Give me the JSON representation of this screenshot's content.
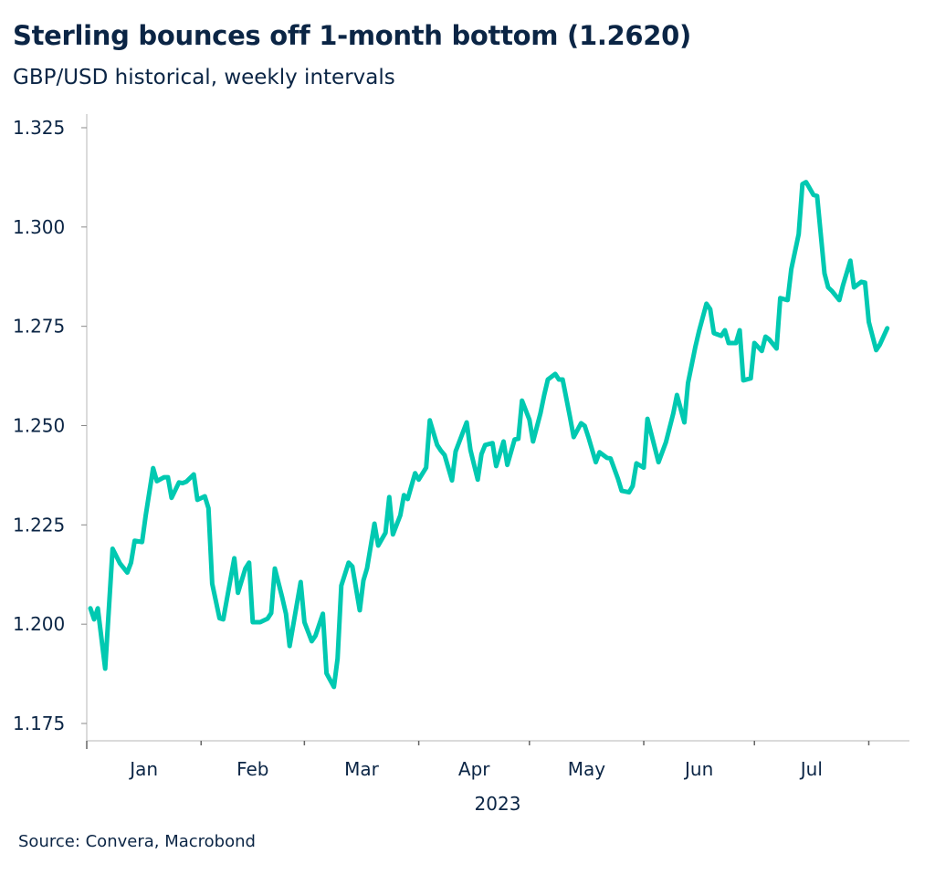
{
  "chart_data": {
    "type": "line",
    "title": "Sterling bounces off 1-month bottom (1.2620)",
    "subtitle": "GBP/USD historical, weekly intervals",
    "source": "Source: Convera, Macrobond",
    "xlabel": "2023",
    "ylabel": "",
    "ylim": [
      1.175,
      1.325
    ],
    "yticks": [
      "1.175",
      "1.200",
      "1.225",
      "1.250",
      "1.275",
      "1.300",
      "1.325"
    ],
    "xticks": [
      "Jan",
      "Feb",
      "Mar",
      "Apr",
      "May",
      "Jun",
      "Jul"
    ],
    "grid": false,
    "line_color": "#00c9b1",
    "series": [
      {
        "x": [
          "2023-01-02",
          "2023-01-03",
          "2023-01-04",
          "2023-01-06",
          "2023-01-08",
          "2023-01-10",
          "2023-01-12",
          "2023-01-13",
          "2023-01-14",
          "2023-01-16",
          "2023-01-17",
          "2023-01-19",
          "2023-01-20",
          "2023-01-22",
          "2023-01-23",
          "2023-01-24",
          "2023-01-26",
          "2023-01-27",
          "2023-01-28",
          "2023-01-30",
          "2023-01-31",
          "2023-02-02",
          "2023-02-03",
          "2023-02-04",
          "2023-02-06",
          "2023-02-07",
          "2023-02-08",
          "2023-02-10",
          "2023-02-11",
          "2023-02-13",
          "2023-02-14",
          "2023-02-15",
          "2023-02-17",
          "2023-02-19",
          "2023-02-20",
          "2023-02-21",
          "2023-02-23",
          "2023-02-24",
          "2023-02-25",
          "2023-02-28",
          "2023-03-01",
          "2023-03-03",
          "2023-03-04",
          "2023-03-06",
          "2023-03-07",
          "2023-03-09",
          "2023-03-10",
          "2023-03-11",
          "2023-03-13",
          "2023-03-14",
          "2023-03-16",
          "2023-03-17",
          "2023-03-18",
          "2023-03-20",
          "2023-03-21",
          "2023-03-23",
          "2023-03-24",
          "2023-03-25",
          "2023-03-27",
          "2023-03-28",
          "2023-03-29",
          "2023-03-31",
          "2023-04-01",
          "2023-04-03",
          "2023-04-04",
          "2023-04-06",
          "2023-04-07",
          "2023-04-08",
          "2023-04-10",
          "2023-04-11",
          "2023-04-14",
          "2023-04-15",
          "2023-04-17",
          "2023-04-18",
          "2023-04-19",
          "2023-04-21",
          "2023-04-22",
          "2023-04-24",
          "2023-04-25",
          "2023-04-27",
          "2023-04-28",
          "2023-04-29",
          "2023-05-01",
          "2023-05-02",
          "2023-05-04",
          "2023-05-05",
          "2023-05-06",
          "2023-05-08",
          "2023-05-09",
          "2023-05-10",
          "2023-05-12",
          "2023-05-13",
          "2023-05-15",
          "2023-05-16",
          "2023-05-17",
          "2023-05-19",
          "2023-05-20",
          "2023-05-22",
          "2023-05-23",
          "2023-05-25",
          "2023-05-26",
          "2023-05-28",
          "2023-05-29",
          "2023-05-30",
          "2023-06-01",
          "2023-06-02",
          "2023-06-03",
          "2023-06-05",
          "2023-06-07",
          "2023-06-09",
          "2023-06-10",
          "2023-06-12",
          "2023-06-13",
          "2023-06-15",
          "2023-06-16",
          "2023-06-18",
          "2023-06-19",
          "2023-06-20",
          "2023-06-22",
          "2023-06-23",
          "2023-06-24",
          "2023-06-26",
          "2023-06-27",
          "2023-06-28",
          "2023-06-30",
          "2023-07-01",
          "2023-07-03",
          "2023-07-04",
          "2023-07-05",
          "2023-07-07",
          "2023-07-08",
          "2023-07-10",
          "2023-07-11",
          "2023-07-13",
          "2023-07-14",
          "2023-07-15",
          "2023-07-17",
          "2023-07-18",
          "2023-07-20",
          "2023-07-21",
          "2023-07-22",
          "2023-07-24",
          "2023-07-25",
          "2023-07-27",
          "2023-07-28",
          "2023-07-30",
          "2023-07-31",
          "2023-08-01",
          "2023-08-03",
          "2023-08-04",
          "2023-08-06"
        ],
        "y": [
          1.204,
          1.2012,
          1.204,
          1.1888,
          1.219,
          1.2153,
          1.213,
          1.2155,
          1.221,
          1.2207,
          1.2274,
          1.2393,
          1.236,
          1.237,
          1.237,
          1.2318,
          1.2357,
          1.2355,
          1.2359,
          1.2377,
          1.2313,
          1.2322,
          1.2292,
          1.2102,
          1.2015,
          1.2012,
          1.2063,
          1.2166,
          1.2079,
          1.214,
          1.2155,
          1.2005,
          1.2005,
          1.2014,
          1.2028,
          1.214,
          1.2067,
          1.2026,
          1.1945,
          1.2106,
          1.2005,
          1.1957,
          1.1971,
          1.2026,
          1.1876,
          1.1842,
          1.1913,
          1.2097,
          1.2155,
          1.2145,
          1.2035,
          1.211,
          1.2141,
          1.2253,
          1.2198,
          1.223,
          1.232,
          1.2226,
          1.2274,
          1.2325,
          1.2315,
          1.238,
          1.2364,
          1.2394,
          1.2513,
          1.2451,
          1.2437,
          1.2426,
          1.2362,
          1.2435,
          1.2508,
          1.2439,
          1.2364,
          1.2428,
          1.2451,
          1.2456,
          1.2398,
          1.246,
          1.2401,
          1.2465,
          1.2467,
          1.2563,
          1.2515,
          1.246,
          1.2531,
          1.2577,
          1.2616,
          1.263,
          1.2616,
          1.2616,
          1.2522,
          1.2471,
          1.2506,
          1.2499,
          1.2471,
          1.2408,
          1.2433,
          1.2419,
          1.2417,
          1.2366,
          1.2336,
          1.2332,
          1.2348,
          1.2405,
          1.2394,
          1.2517,
          1.2481,
          1.2408,
          1.2458,
          1.2531,
          1.2577,
          1.2508,
          1.2607,
          1.2699,
          1.2738,
          1.2807,
          1.2793,
          1.2733,
          1.2726,
          1.274,
          1.2708,
          1.2708,
          1.274,
          1.2614,
          1.2619,
          1.2708,
          1.2688,
          1.2724,
          1.2717,
          1.2694,
          1.2821,
          1.2816,
          1.2894,
          1.2982,
          1.3108,
          1.3113,
          1.3081,
          1.3078,
          1.2883,
          1.2848,
          1.2839,
          1.2816,
          1.2853,
          1.2915,
          1.2848,
          1.2862,
          1.286,
          1.2761,
          1.269,
          1.2704,
          1.2745
        ]
      }
    ]
  }
}
